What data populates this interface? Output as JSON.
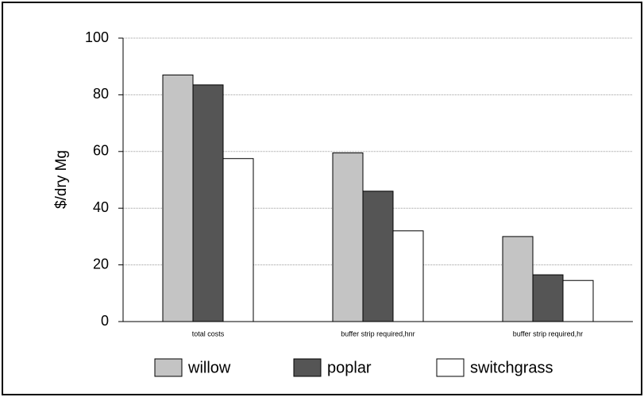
{
  "chart_data": {
    "type": "bar",
    "ylabel": "$/dry Mg",
    "categories": [
      "total costs",
      "buffer strip required,hnr",
      "buffer strip required,hr"
    ],
    "series": [
      {
        "name": "willow",
        "color": "#c4c4c4",
        "values": [
          87,
          59.5,
          30
        ]
      },
      {
        "name": "poplar",
        "color": "#555555",
        "values": [
          83.5,
          46,
          16.5
        ]
      },
      {
        "name": "switchgrass",
        "color": "#ffffff",
        "values": [
          57.5,
          32,
          14.5
        ]
      }
    ],
    "ylim": [
      0,
      100
    ],
    "yticks": [
      0,
      20,
      40,
      60,
      80,
      100
    ],
    "grid": true,
    "legend": "bottom"
  }
}
